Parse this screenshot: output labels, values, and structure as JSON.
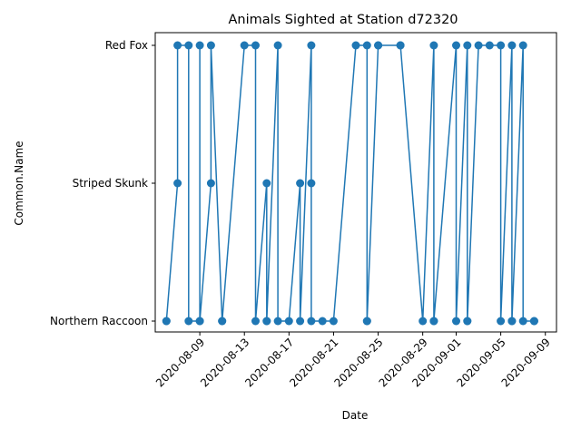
{
  "chart_data": {
    "type": "line",
    "title": "Animals Sighted at Station d72320",
    "xlabel": "Date",
    "ylabel": "Common.Name",
    "categories": [
      "Northern Raccoon",
      "Striped Skunk",
      "Red Fox"
    ],
    "x_ticks": [
      "2020-08-09",
      "2020-08-13",
      "2020-08-17",
      "2020-08-21",
      "2020-08-25",
      "2020-08-29",
      "2020-09-01",
      "2020-09-05",
      "2020-09-09"
    ],
    "xlim": [
      "2020-08-05",
      "2020-09-10"
    ],
    "grid": false,
    "legend": "none",
    "line_color": "#1f77b4",
    "points": [
      {
        "x": "2020-08-06",
        "y": "Northern Raccoon"
      },
      {
        "x": "2020-08-06",
        "y": "Northern Raccoon"
      },
      {
        "x": "2020-08-07",
        "y": "Striped Skunk"
      },
      {
        "x": "2020-08-07",
        "y": "Red Fox"
      },
      {
        "x": "2020-08-08",
        "y": "Red Fox"
      },
      {
        "x": "2020-08-08",
        "y": "Northern Raccoon"
      },
      {
        "x": "2020-08-09",
        "y": "Northern Raccoon"
      },
      {
        "x": "2020-08-09",
        "y": "Red Fox"
      },
      {
        "x": "2020-08-09",
        "y": "Northern Raccoon"
      },
      {
        "x": "2020-08-10",
        "y": "Striped Skunk"
      },
      {
        "x": "2020-08-10",
        "y": "Red Fox"
      },
      {
        "x": "2020-08-11",
        "y": "Northern Raccoon"
      },
      {
        "x": "2020-08-11",
        "y": "Northern Raccoon"
      },
      {
        "x": "2020-08-13",
        "y": "Red Fox"
      },
      {
        "x": "2020-08-14",
        "y": "Red Fox"
      },
      {
        "x": "2020-08-14",
        "y": "Northern Raccoon"
      },
      {
        "x": "2020-08-15",
        "y": "Striped Skunk"
      },
      {
        "x": "2020-08-15",
        "y": "Northern Raccoon"
      },
      {
        "x": "2020-08-15",
        "y": "Northern Raccoon"
      },
      {
        "x": "2020-08-16",
        "y": "Red Fox"
      },
      {
        "x": "2020-08-16",
        "y": "Northern Raccoon"
      },
      {
        "x": "2020-08-17",
        "y": "Northern Raccoon"
      },
      {
        "x": "2020-08-18",
        "y": "Striped Skunk"
      },
      {
        "x": "2020-08-18",
        "y": "Northern Raccoon"
      },
      {
        "x": "2020-08-19",
        "y": "Red Fox"
      },
      {
        "x": "2020-08-19",
        "y": "Striped Skunk"
      },
      {
        "x": "2020-08-19",
        "y": "Northern Raccoon"
      },
      {
        "x": "2020-08-20",
        "y": "Northern Raccoon"
      },
      {
        "x": "2020-08-21",
        "y": "Northern Raccoon"
      },
      {
        "x": "2020-08-23",
        "y": "Red Fox"
      },
      {
        "x": "2020-08-24",
        "y": "Red Fox"
      },
      {
        "x": "2020-08-24",
        "y": "Northern Raccoon"
      },
      {
        "x": "2020-08-24",
        "y": "Northern Raccoon"
      },
      {
        "x": "2020-08-25",
        "y": "Red Fox"
      },
      {
        "x": "2020-08-25",
        "y": "Red Fox"
      },
      {
        "x": "2020-08-27",
        "y": "Red Fox"
      },
      {
        "x": "2020-08-27",
        "y": "Red Fox"
      },
      {
        "x": "2020-08-29",
        "y": "Northern Raccoon"
      },
      {
        "x": "2020-08-30",
        "y": "Red Fox"
      },
      {
        "x": "2020-08-30",
        "y": "Northern Raccoon"
      },
      {
        "x": "2020-08-30",
        "y": "Northern Raccoon"
      },
      {
        "x": "2020-09-01",
        "y": "Red Fox"
      },
      {
        "x": "2020-09-01",
        "y": "Northern Raccoon"
      },
      {
        "x": "2020-09-02",
        "y": "Red Fox"
      },
      {
        "x": "2020-09-02",
        "y": "Northern Raccoon"
      },
      {
        "x": "2020-09-02",
        "y": "Northern Raccoon"
      },
      {
        "x": "2020-09-03",
        "y": "Red Fox"
      },
      {
        "x": "2020-09-04",
        "y": "Red Fox"
      },
      {
        "x": "2020-09-05",
        "y": "Red Fox"
      },
      {
        "x": "2020-09-05",
        "y": "Northern Raccoon"
      },
      {
        "x": "2020-09-06",
        "y": "Red Fox"
      },
      {
        "x": "2020-09-06",
        "y": "Northern Raccoon"
      },
      {
        "x": "2020-09-06",
        "y": "Northern Raccoon"
      },
      {
        "x": "2020-09-07",
        "y": "Red Fox"
      },
      {
        "x": "2020-09-07",
        "y": "Northern Raccoon"
      },
      {
        "x": "2020-09-08",
        "y": "Northern Raccoon"
      },
      {
        "x": "2020-09-08",
        "y": "Northern Raccoon"
      }
    ]
  }
}
